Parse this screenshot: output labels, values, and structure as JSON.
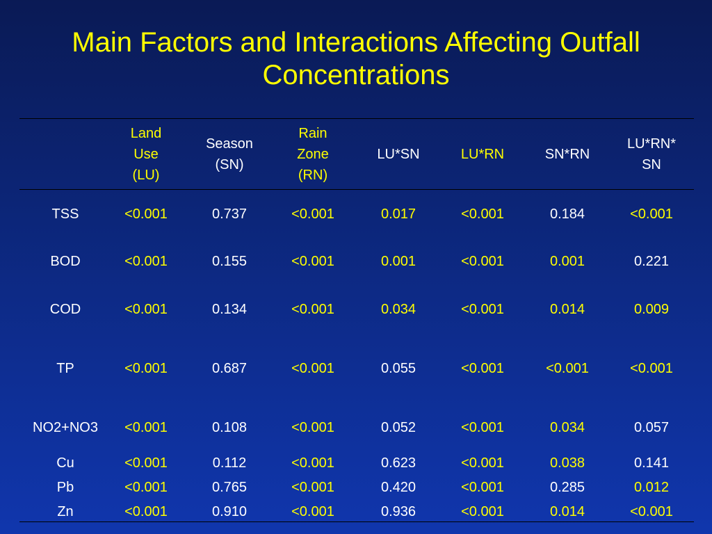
{
  "title": {
    "line1": "Main Factors and Interactions Affecting Outfall",
    "line2": "Concentrations"
  },
  "colors": {
    "highlight": "#ffff00",
    "normal": "#ffffff",
    "background": "#0d2a86"
  },
  "table": {
    "headers": [
      {
        "lines": [
          "Land",
          "Use",
          "(LU)"
        ],
        "highlight": true
      },
      {
        "lines": [
          "Season",
          "(SN)"
        ],
        "highlight": false
      },
      {
        "lines": [
          "Rain",
          "Zone",
          "(RN)"
        ],
        "highlight": true
      },
      {
        "lines": [
          "LU*SN"
        ],
        "highlight": false
      },
      {
        "lines": [
          "LU*RN"
        ],
        "highlight": true
      },
      {
        "lines": [
          "SN*RN"
        ],
        "highlight": false
      },
      {
        "lines": [
          "LU*RN*",
          "SN"
        ],
        "highlight": false
      }
    ],
    "rows": [
      {
        "label": "TSS",
        "values": [
          "<0.001",
          "0.737",
          "<0.001",
          "0.017",
          "<0.001",
          "0.184",
          "<0.001"
        ],
        "highlight": [
          true,
          false,
          true,
          true,
          true,
          false,
          true
        ]
      },
      {
        "label": "BOD",
        "values": [
          "<0.001",
          "0.155",
          "<0.001",
          "0.001",
          "<0.001",
          "0.001",
          "0.221"
        ],
        "highlight": [
          true,
          false,
          true,
          true,
          true,
          true,
          false
        ]
      },
      {
        "label": "COD",
        "values": [
          "<0.001",
          "0.134",
          "<0.001",
          "0.034",
          "<0.001",
          "0.014",
          "0.009"
        ],
        "highlight": [
          true,
          false,
          true,
          true,
          true,
          true,
          true
        ]
      },
      {
        "label": "TP",
        "values": [
          "<0.001",
          "0.687",
          "<0.001",
          "0.055",
          "<0.001",
          "<0.001",
          "<0.001"
        ],
        "highlight": [
          true,
          false,
          true,
          false,
          true,
          true,
          true
        ]
      },
      {
        "label": "NO2+NO3",
        "values": [
          "<0.001",
          "0.108",
          "<0.001",
          "0.052",
          "<0.001",
          "0.034",
          "0.057"
        ],
        "highlight": [
          true,
          false,
          true,
          false,
          true,
          true,
          false
        ]
      },
      {
        "label": "Cu",
        "values": [
          "<0.001",
          "0.112",
          "<0.001",
          "0.623",
          "<0.001",
          "0.038",
          "0.141"
        ],
        "highlight": [
          true,
          false,
          true,
          false,
          true,
          true,
          false
        ]
      },
      {
        "label": "Pb",
        "values": [
          "<0.001",
          "0.765",
          "<0.001",
          "0.420",
          "<0.001",
          "0.285",
          "0.012"
        ],
        "highlight": [
          true,
          false,
          true,
          false,
          true,
          false,
          true
        ]
      },
      {
        "label": "Zn",
        "values": [
          "<0.001",
          "0.910",
          "<0.001",
          "0.936",
          "<0.001",
          "0.014",
          "<0.001"
        ],
        "highlight": [
          true,
          false,
          true,
          false,
          true,
          true,
          true
        ]
      }
    ]
  }
}
